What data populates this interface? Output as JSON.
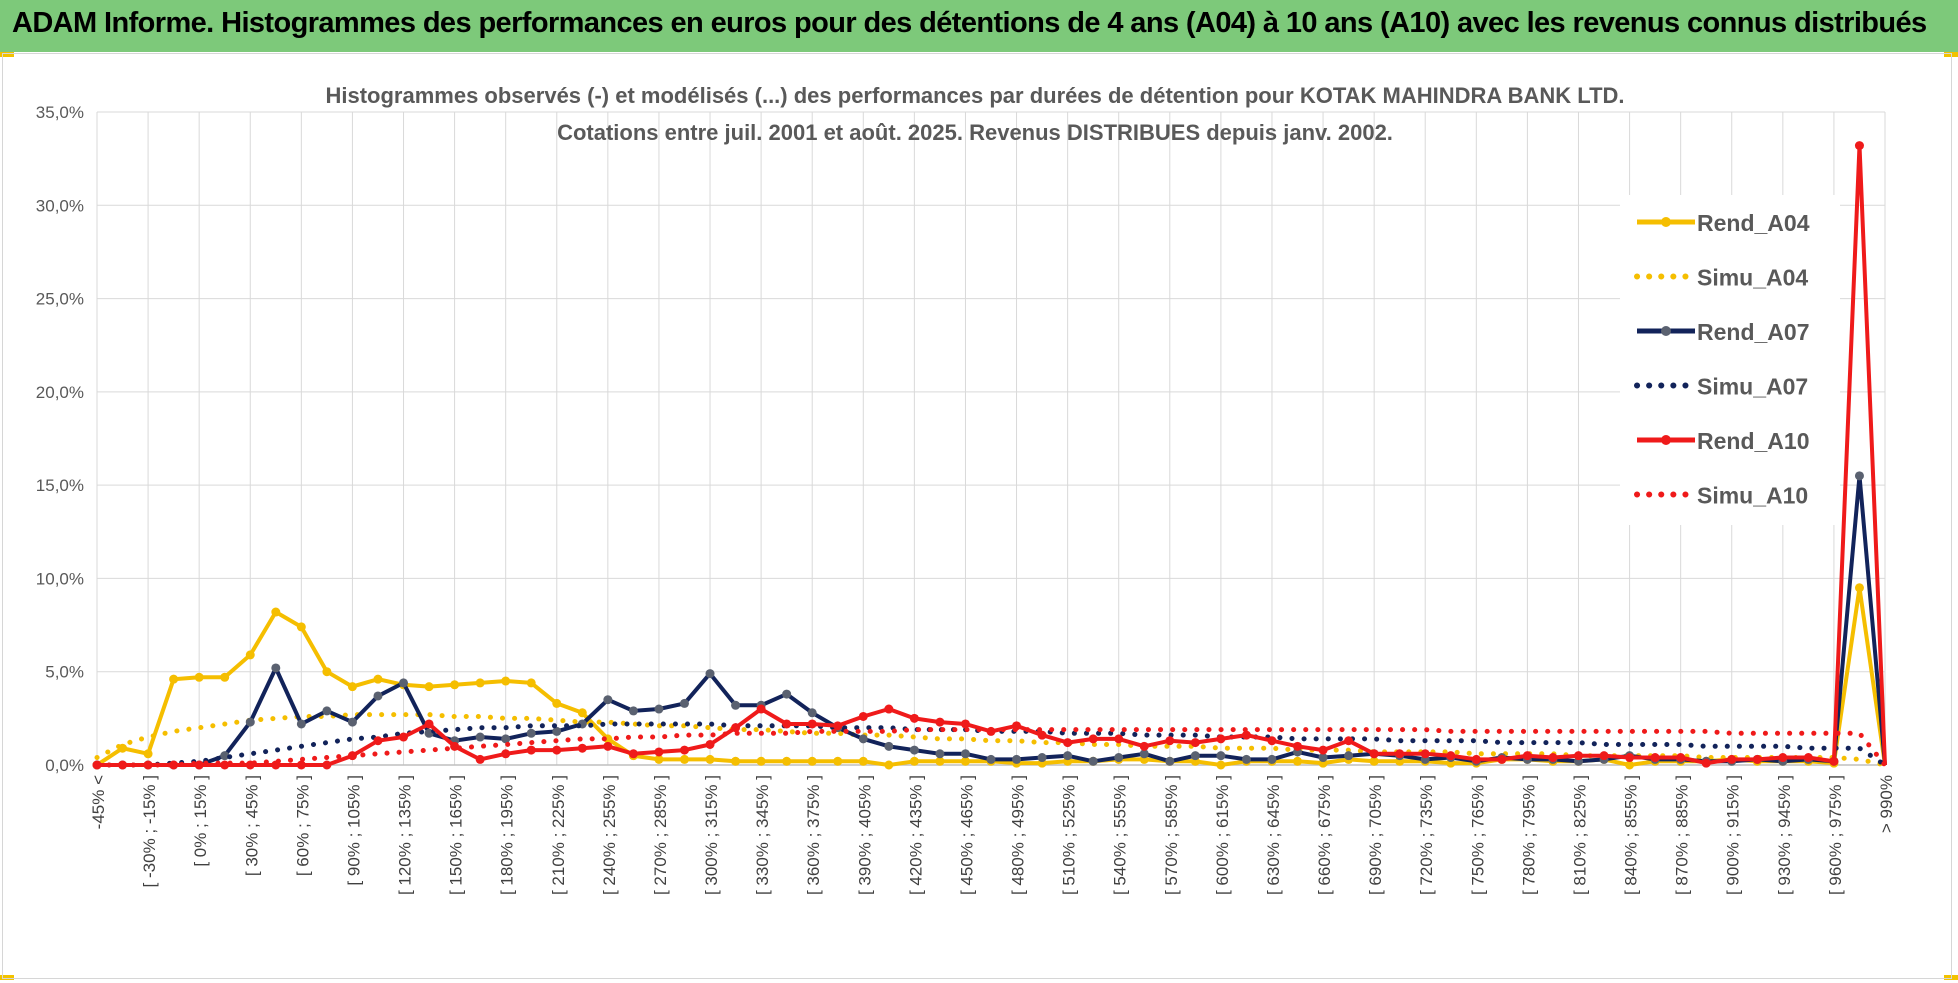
{
  "header": {
    "title": "ADAM Informe. Histogrammes des performances en euros pour des détentions de 4 ans (A04) à 10 ans (A10) avec les revenus connus distribués"
  },
  "colors": {
    "banner": "#7dc97a",
    "yellow": "#f5be00",
    "navy": "#12235a",
    "red": "#ef1a1a",
    "grid": "#d9d9d9"
  },
  "chart_data": {
    "type": "line",
    "title": "Histogrammes observés (-) et modélisés (...) des performances par durées de détention pour KOTAK MAHINDRA BANK LTD.",
    "subtitle": "Cotations entre juil. 2001 et août. 2025. Revenus DISTRIBUES depuis janv. 2002.",
    "xlabel": "",
    "ylabel": "",
    "ylim": [
      0,
      35
    ],
    "yticks": [
      "0,0%",
      "5,0%",
      "10,0%",
      "15,0%",
      "20,0%",
      "25,0%",
      "30,0%",
      "35,0%"
    ],
    "grid": true,
    "legend_position": "right",
    "categories": [
      "-45% <",
      "[ -45% ; -30% ]",
      "[ -30% ; -15% ]",
      "[ -15% ; 0% ]",
      "[ 0% ; 15% ]",
      "[ 15% ; 30% ]",
      "[ 30% ; 45% ]",
      "[ 45% ; 60% ]",
      "[ 60% ; 75% ]",
      "[ 75% ; 90% ]",
      "[ 90% ; 105% ]",
      "[ 105% ; 120% ]",
      "[ 120% ; 135% ]",
      "[ 135% ; 150% ]",
      "[ 150% ; 165% ]",
      "[ 165% ; 180% ]",
      "[ 180% ; 195% ]",
      "[ 195% ; 210% ]",
      "[ 210% ; 225% ]",
      "[ 225% ; 240% ]",
      "[ 240% ; 255% ]",
      "[ 255% ; 270% ]",
      "[ 270% ; 285% ]",
      "[ 285% ; 300% ]",
      "[ 300% ; 315% ]",
      "[ 315% ; 330% ]",
      "[ 330% ; 345% ]",
      "[ 345% ; 360% ]",
      "[ 360% ; 375% ]",
      "[ 375% ; 390% ]",
      "[ 390% ; 405% ]",
      "[ 405% ; 420% ]",
      "[ 420% ; 435% ]",
      "[ 435% ; 450% ]",
      "[ 450% ; 465% ]",
      "[ 465% ; 480% ]",
      "[ 480% ; 495% ]",
      "[ 495% ; 510% ]",
      "[ 510% ; 525% ]",
      "[ 525% ; 540% ]",
      "[ 540% ; 555% ]",
      "[ 555% ; 570% ]",
      "[ 570% ; 585% ]",
      "[ 585% ; 600% ]",
      "[ 600% ; 615% ]",
      "[ 615% ; 630% ]",
      "[ 630% ; 645% ]",
      "[ 645% ; 660% ]",
      "[ 660% ; 675% ]",
      "[ 675% ; 690% ]",
      "[ 690% ; 705% ]",
      "[ 705% ; 720% ]",
      "[ 720% ; 735% ]",
      "[ 735% ; 750% ]",
      "[ 750% ; 765% ]",
      "[ 765% ; 780% ]",
      "[ 780% ; 795% ]",
      "[ 795% ; 810% ]",
      "[ 810% ; 825% ]",
      "[ 825% ; 840% ]",
      "[ 840% ; 855% ]",
      "[ 855% ; 870% ]",
      "[ 870% ; 885% ]",
      "[ 885% ; 900% ]",
      "[ 900% ; 915% ]",
      "[ 915% ; 930% ]",
      "[ 930% ; 945% ]",
      "[ 945% ; 960% ]",
      "[ 960% ; 975% ]",
      "[ 975% ; 990% ]",
      "> 990%"
    ],
    "series": [
      {
        "name": "Rend_A04",
        "style": "solid",
        "color": "#f5be00",
        "values": [
          0.0,
          0.9,
          0.6,
          4.6,
          4.7,
          4.7,
          5.9,
          8.2,
          7.4,
          5.0,
          4.2,
          4.6,
          4.3,
          4.2,
          4.3,
          4.4,
          4.5,
          4.4,
          3.3,
          2.8,
          1.4,
          0.5,
          0.3,
          0.3,
          0.3,
          0.2,
          0.2,
          0.2,
          0.2,
          0.2,
          0.2,
          0.0,
          0.2,
          0.2,
          0.2,
          0.2,
          0.1,
          0.1,
          0.2,
          0.2,
          0.3,
          0.3,
          0.2,
          0.2,
          0.0,
          0.2,
          0.2,
          0.2,
          0.1,
          0.3,
          0.2,
          0.2,
          0.2,
          0.1,
          0.1,
          0.3,
          0.3,
          0.2,
          0.2,
          0.3,
          0.0,
          0.2,
          0.2,
          0.2,
          0.3,
          0.2,
          0.2,
          0.2,
          0.1,
          9.5,
          0.0
        ]
      },
      {
        "name": "Simu_A04",
        "style": "dotted",
        "color": "#f5be00",
        "values": [
          0.4,
          1.1,
          1.5,
          1.8,
          2.0,
          2.2,
          2.4,
          2.5,
          2.6,
          2.6,
          2.7,
          2.7,
          2.7,
          2.7,
          2.6,
          2.6,
          2.5,
          2.5,
          2.4,
          2.3,
          2.3,
          2.2,
          2.1,
          2.1,
          2.0,
          1.9,
          1.9,
          1.8,
          1.7,
          1.7,
          1.6,
          1.6,
          1.5,
          1.4,
          1.4,
          1.3,
          1.3,
          1.2,
          1.2,
          1.1,
          1.1,
          1.0,
          1.0,
          1.0,
          0.9,
          0.9,
          0.9,
          0.8,
          0.8,
          0.8,
          0.7,
          0.7,
          0.7,
          0.7,
          0.6,
          0.6,
          0.6,
          0.6,
          0.5,
          0.5,
          0.5,
          0.5,
          0.5,
          0.4,
          0.4,
          0.4,
          0.4,
          0.4,
          0.4,
          0.3,
          0.0
        ]
      },
      {
        "name": "Rend_A07",
        "style": "solid",
        "color": "#12235a",
        "values": [
          0.0,
          0.0,
          0.0,
          0.0,
          0.0,
          0.5,
          2.3,
          5.2,
          2.2,
          2.9,
          2.3,
          3.7,
          4.4,
          1.7,
          1.3,
          1.5,
          1.4,
          1.7,
          1.8,
          2.2,
          3.5,
          2.9,
          3.0,
          3.3,
          4.9,
          3.2,
          3.2,
          3.8,
          2.8,
          2.0,
          1.4,
          1.0,
          0.8,
          0.6,
          0.6,
          0.3,
          0.3,
          0.4,
          0.5,
          0.2,
          0.4,
          0.6,
          0.2,
          0.5,
          0.5,
          0.3,
          0.3,
          0.7,
          0.4,
          0.5,
          0.6,
          0.5,
          0.3,
          0.4,
          0.2,
          0.4,
          0.3,
          0.3,
          0.2,
          0.3,
          0.5,
          0.3,
          0.3,
          0.2,
          0.2,
          0.3,
          0.2,
          0.3,
          0.2,
          15.5,
          0.0
        ]
      },
      {
        "name": "Simu_A07",
        "style": "dotted",
        "color": "#12235a",
        "values": [
          0.0,
          0.0,
          0.0,
          0.1,
          0.2,
          0.4,
          0.6,
          0.8,
          1.0,
          1.2,
          1.4,
          1.5,
          1.7,
          1.8,
          1.9,
          2.0,
          2.0,
          2.1,
          2.1,
          2.1,
          2.2,
          2.2,
          2.2,
          2.2,
          2.2,
          2.1,
          2.1,
          2.1,
          2.1,
          2.0,
          2.0,
          2.0,
          1.9,
          1.9,
          1.9,
          1.8,
          1.8,
          1.8,
          1.7,
          1.7,
          1.7,
          1.6,
          1.6,
          1.6,
          1.5,
          1.5,
          1.5,
          1.4,
          1.4,
          1.4,
          1.4,
          1.3,
          1.3,
          1.3,
          1.3,
          1.2,
          1.2,
          1.2,
          1.2,
          1.1,
          1.1,
          1.1,
          1.1,
          1.0,
          1.0,
          1.0,
          1.0,
          0.9,
          0.9,
          0.9,
          0.0
        ]
      },
      {
        "name": "Rend_A10",
        "style": "solid",
        "color": "#ef1a1a",
        "values": [
          0.0,
          0.0,
          0.0,
          0.0,
          0.0,
          0.0,
          0.0,
          0.0,
          0.0,
          0.0,
          0.5,
          1.3,
          1.5,
          2.2,
          1.0,
          0.3,
          0.6,
          0.8,
          0.8,
          0.9,
          1.0,
          0.6,
          0.7,
          0.8,
          1.1,
          2.0,
          3.0,
          2.2,
          2.2,
          2.1,
          2.6,
          3.0,
          2.5,
          2.3,
          2.2,
          1.8,
          2.1,
          1.6,
          1.2,
          1.4,
          1.4,
          1.0,
          1.3,
          1.2,
          1.4,
          1.6,
          1.3,
          1.0,
          0.8,
          1.3,
          0.6,
          0.6,
          0.6,
          0.5,
          0.3,
          0.3,
          0.5,
          0.4,
          0.5,
          0.5,
          0.4,
          0.4,
          0.4,
          0.1,
          0.3,
          0.3,
          0.4,
          0.4,
          0.2,
          33.2,
          0.0
        ]
      },
      {
        "name": "Simu_A10",
        "style": "dotted",
        "color": "#ef1a1a",
        "values": [
          0.0,
          0.0,
          0.0,
          0.0,
          0.1,
          0.1,
          0.1,
          0.2,
          0.3,
          0.4,
          0.5,
          0.6,
          0.7,
          0.8,
          0.9,
          1.0,
          1.1,
          1.2,
          1.3,
          1.4,
          1.4,
          1.5,
          1.5,
          1.6,
          1.6,
          1.7,
          1.7,
          1.7,
          1.8,
          1.8,
          1.8,
          1.8,
          1.9,
          1.9,
          1.9,
          1.9,
          1.9,
          1.9,
          1.9,
          1.9,
          1.9,
          1.9,
          1.9,
          1.9,
          1.9,
          1.9,
          1.9,
          1.9,
          1.9,
          1.9,
          1.9,
          1.9,
          1.9,
          1.8,
          1.8,
          1.8,
          1.8,
          1.8,
          1.8,
          1.8,
          1.8,
          1.8,
          1.8,
          1.8,
          1.7,
          1.7,
          1.7,
          1.7,
          1.7,
          1.7,
          0.0
        ]
      }
    ]
  }
}
